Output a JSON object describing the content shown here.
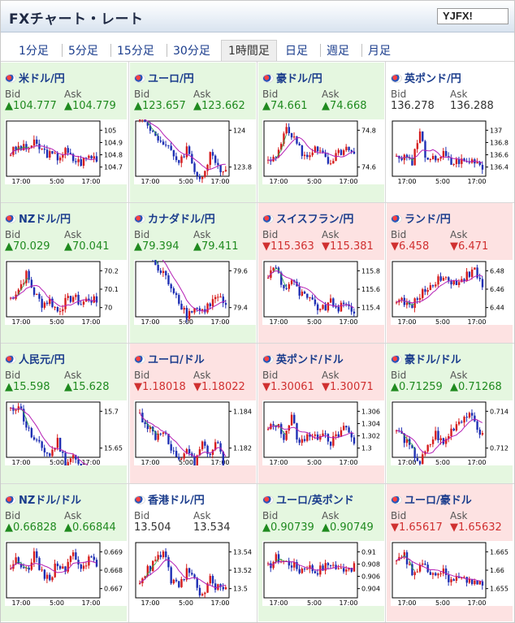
{
  "header": {
    "title": "FXチャート・レート",
    "logo": "YJFX!"
  },
  "tabs": [
    {
      "label": "1分足"
    },
    {
      "label": "5分足"
    },
    {
      "label": "15分足"
    },
    {
      "label": "30分足"
    },
    {
      "label": "1時間足",
      "active": true
    },
    {
      "label": "日足"
    },
    {
      "label": "週足"
    },
    {
      "label": "月足"
    }
  ],
  "labels": {
    "bid": "Bid",
    "ask": "Ask"
  },
  "colors": {
    "up_bg": "#e5f7e0",
    "down_bg": "#fde2e2",
    "candle_up": "#d61c1c",
    "candle_down": "#1e2fb4",
    "ma": "#b51fb5",
    "ma2": "#2aa84a"
  },
  "x_ticks": [
    "17:00",
    "5:00",
    "17:00"
  ],
  "pairs": [
    {
      "name": "米ドル/円",
      "bid": "104.777",
      "ask": "104.779",
      "dir": "up",
      "bg": "up",
      "y_ticks": [
        "105",
        "104.9",
        "104.8",
        "104.7"
      ],
      "close": [
        104.82,
        104.86,
        104.85,
        104.89,
        104.84,
        104.8,
        104.78,
        104.83,
        104.76,
        104.74,
        104.79,
        104.78
      ]
    },
    {
      "name": "ユーロ/円",
      "bid": "123.657",
      "ask": "123.662",
      "dir": "up",
      "bg": "up",
      "y_ticks": [
        "124",
        "123.8"
      ],
      "close": [
        124.08,
        124.02,
        123.98,
        123.92,
        123.88,
        123.83,
        123.9,
        123.78,
        123.74,
        123.86,
        123.8,
        123.79
      ]
    },
    {
      "name": "豪ドル/円",
      "bid": "74.661",
      "ask": "74.668",
      "dir": "up",
      "bg": "up",
      "y_ticks": [
        "74.8",
        "74.6"
      ],
      "close": [
        74.62,
        74.65,
        74.8,
        74.78,
        74.7,
        74.64,
        74.72,
        74.66,
        74.6,
        74.68,
        74.69,
        74.66
      ]
    },
    {
      "name": "英ポンド/円",
      "bid": "136.278",
      "ask": "136.288",
      "dir": "flat",
      "bg": "flat",
      "y_ticks": [
        "137",
        "136.8",
        "136.6",
        "136.4"
      ],
      "close": [
        136.55,
        136.6,
        136.5,
        136.95,
        136.45,
        136.55,
        136.6,
        136.45,
        136.5,
        136.48,
        136.52,
        136.42
      ]
    },
    {
      "name": "NZドル/円",
      "bid": "70.029",
      "ask": "70.041",
      "dir": "up",
      "bg": "up",
      "y_ticks": [
        "70.2",
        "70.1",
        "70"
      ],
      "close": [
        70.05,
        70.1,
        70.18,
        70.08,
        70.02,
        70.04,
        69.98,
        70.03,
        70.06,
        70.02,
        70.05,
        70.03
      ]
    },
    {
      "name": "カナダドル/円",
      "bid": "79.394",
      "ask": "79.411",
      "dir": "up",
      "bg": "up",
      "y_ticks": [
        "79.6",
        "79.4"
      ],
      "close": [
        79.7,
        79.74,
        79.62,
        79.58,
        79.52,
        79.44,
        79.36,
        79.4,
        79.38,
        79.42,
        79.46,
        79.4
      ]
    },
    {
      "name": "スイスフラン/円",
      "bid": "115.363",
      "ask": "115.381",
      "dir": "down",
      "bg": "down",
      "y_ticks": [
        "115.8",
        "115.6",
        "115.4"
      ],
      "close": [
        115.75,
        115.85,
        115.6,
        115.7,
        115.55,
        115.5,
        115.42,
        115.38,
        115.45,
        115.4,
        115.42,
        115.37
      ]
    },
    {
      "name": "ランド/円",
      "bid": "6.458",
      "ask": "6.471",
      "dir": "down",
      "bg": "down",
      "y_ticks": [
        "6.48",
        "6.46",
        "6.44"
      ],
      "close": [
        6.45,
        6.445,
        6.44,
        6.455,
        6.46,
        6.47,
        6.475,
        6.465,
        6.47,
        6.475,
        6.48,
        6.462
      ]
    },
    {
      "name": "人民元/円",
      "bid": "15.598",
      "ask": "15.628",
      "dir": "up",
      "bg": "up",
      "y_ticks": [
        "15.7",
        "15.65"
      ],
      "close": [
        15.7,
        15.71,
        15.68,
        15.66,
        15.65,
        15.64,
        15.66,
        15.63,
        15.64,
        15.62,
        15.61,
        15.6
      ]
    },
    {
      "name": "ユーロ/ドル",
      "bid": "1.18018",
      "ask": "1.18022",
      "dir": "down",
      "bg": "down",
      "y_ticks": [
        "1.184",
        "1.182"
      ],
      "close": [
        1.1838,
        1.1832,
        1.1826,
        1.183,
        1.1818,
        1.1812,
        1.182,
        1.181,
        1.1822,
        1.1816,
        1.1824,
        1.1802
      ]
    },
    {
      "name": "英ポンド/ドル",
      "bid": "1.30061",
      "ask": "1.30071",
      "dir": "down",
      "bg": "down",
      "y_ticks": [
        "1.306",
        "1.304",
        "1.302",
        "1.3"
      ],
      "close": [
        1.303,
        1.304,
        1.302,
        1.305,
        1.3005,
        1.3025,
        1.3015,
        1.303,
        1.301,
        1.302,
        1.3035,
        1.3006
      ]
    },
    {
      "name": "豪ドル/ドル",
      "bid": "0.71259",
      "ask": "0.71268",
      "dir": "up",
      "bg": "up",
      "y_ticks": [
        "0.714",
        "0.712"
      ],
      "close": [
        0.713,
        0.7125,
        0.7118,
        0.7112,
        0.712,
        0.7128,
        0.7122,
        0.713,
        0.7135,
        0.7138,
        0.7134,
        0.7126
      ]
    },
    {
      "name": "NZドル/ドル",
      "bid": "0.66828",
      "ask": "0.66844",
      "dir": "up",
      "bg": "up",
      "y_ticks": [
        "0.669",
        "0.668",
        "0.667"
      ],
      "close": [
        0.6682,
        0.6686,
        0.668,
        0.6688,
        0.6678,
        0.6676,
        0.6684,
        0.6681,
        0.6689,
        0.6683,
        0.6686,
        0.6683
      ]
    },
    {
      "name": "香港ドル/円",
      "bid": "13.504",
      "ask": "13.534",
      "dir": "flat",
      "bg": "flat",
      "y_ticks": [
        "13.54",
        "13.52",
        "13.5"
      ],
      "close": [
        13.51,
        13.52,
        13.53,
        13.54,
        13.51,
        13.5,
        13.52,
        13.51,
        13.49,
        13.51,
        13.5,
        13.5
      ]
    },
    {
      "name": "ユーロ/英ポンド",
      "bid": "0.90739",
      "ask": "0.90749",
      "dir": "up",
      "bg": "up",
      "y_ticks": [
        "0.91",
        "0.908",
        "0.906",
        "0.904"
      ],
      "close": [
        0.9075,
        0.909,
        0.9085,
        0.908,
        0.907,
        0.9078,
        0.9068,
        0.9074,
        0.9082,
        0.907,
        0.9076,
        0.9074
      ]
    },
    {
      "name": "ユーロ/豪ドル",
      "bid": "1.65617",
      "ask": "1.65632",
      "dir": "down",
      "bg": "down",
      "y_ticks": [
        "1.665",
        "1.66",
        "1.655"
      ],
      "close": [
        1.662,
        1.664,
        1.659,
        1.661,
        1.66,
        1.6585,
        1.6595,
        1.657,
        1.658,
        1.6565,
        1.6575,
        1.6562
      ]
    }
  ]
}
